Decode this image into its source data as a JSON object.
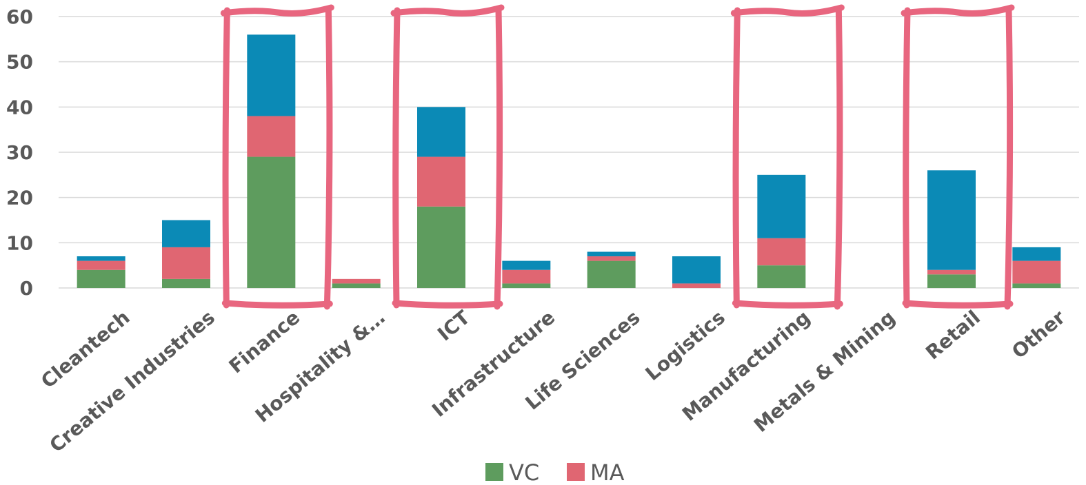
{
  "chart_data": {
    "type": "bar",
    "stacked": true,
    "categories": [
      "Cleantech",
      "Creative Industries",
      "Finance",
      "Hospitality &…",
      "ICT",
      "Infrastructure",
      "Life Sciences",
      "Logistics",
      "Manufacturing",
      "Metals & Mining",
      "Retail",
      "Other"
    ],
    "series": [
      {
        "name": "VC",
        "color": "#5e9c5e",
        "values": [
          4,
          2,
          29,
          1,
          18,
          1,
          6,
          0,
          5,
          0,
          3,
          1
        ]
      },
      {
        "name": "MA",
        "color": "#e06672",
        "values": [
          2,
          7,
          9,
          1,
          11,
          3,
          1,
          1,
          6,
          0,
          1,
          5
        ]
      },
      {
        "color": "#0b8ab6",
        "values": [
          1,
          6,
          18,
          0,
          11,
          2,
          1,
          6,
          14,
          0,
          22,
          3
        ]
      }
    ],
    "y_ticks": [
      "0",
      "10",
      "20",
      "30",
      "40",
      "50",
      "60"
    ],
    "ylim": [
      0,
      60
    ],
    "grid": true,
    "legend": {
      "placement": "bottom",
      "entries": [
        "VC",
        "MA"
      ]
    },
    "highlighted_categories": [
      "Finance",
      "ICT",
      "Manufacturing",
      "Retail"
    ],
    "highlight_color": "#e8667f",
    "gridline_color": "#d9d9d9"
  }
}
